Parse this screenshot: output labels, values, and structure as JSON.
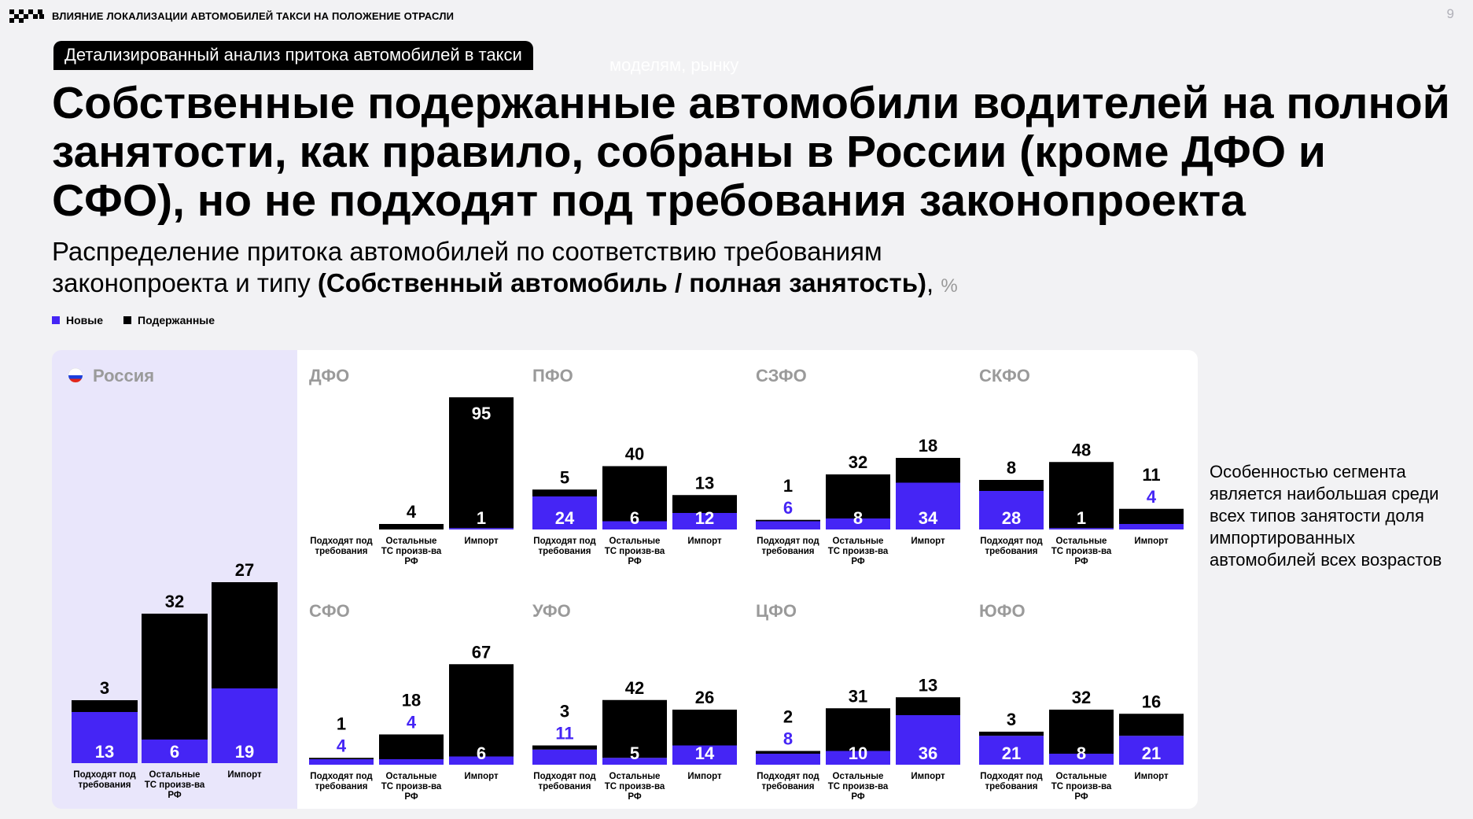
{
  "header": {
    "text": "ВЛИЯНИЕ ЛОКАЛИЗАЦИИ АВТОМОБИЛЕЙ ТАКСИ НА ПОЛОЖЕНИЕ ОТРАСЛИ",
    "page_number": "9"
  },
  "tag": {
    "label": "Детализированный анализ притока автомобилей в такси",
    "ghost_text": "моделям, рынку"
  },
  "title": "Собственные подержанные автомобили водителей на полной занятости, как правило, собраны в России (кроме ДФО и СФО), но не подходят под требования законопроекта",
  "subtitle": {
    "line1": "Распределение притока автомобилей по соответствию требованиям",
    "line2_prefix": "законопроекта и типу ",
    "line2_bold": "(Собственный автомобиль / полная занятость)",
    "line2_suffix": ",",
    "unit": "%"
  },
  "legend": {
    "new": "Новые",
    "used": "Подержанные"
  },
  "colors": {
    "new": "#4525f5",
    "used": "#000000",
    "russia_bg": "#e9e6fb",
    "region_title": "#9a9a9a"
  },
  "side_note": "Особенностью сегмента является наибольшая среди всех типов занятости доля импортированных автомобилей всех возрастов",
  "chart_data": {
    "type": "bar",
    "stacked": true,
    "unit": "%",
    "categories": [
      "Подходят под требования",
      "Остальные ТС произв-ва РФ",
      "Импорт"
    ],
    "series_names": [
      "Новые",
      "Подержанные"
    ],
    "panels": [
      {
        "region": "Россия",
        "new": [
          13,
          6,
          19
        ],
        "used": [
          3,
          32,
          27
        ]
      },
      {
        "region": "ДФО",
        "new": [
          null,
          null,
          1
        ],
        "used": [
          null,
          4,
          95
        ]
      },
      {
        "region": "ПФО",
        "new": [
          24,
          6,
          12
        ],
        "used": [
          5,
          40,
          13
        ]
      },
      {
        "region": "СЗФО",
        "new": [
          6,
          8,
          34
        ],
        "used": [
          1,
          32,
          18
        ]
      },
      {
        "region": "СКФО",
        "new": [
          28,
          1,
          4
        ],
        "used": [
          8,
          48,
          11
        ]
      },
      {
        "region": "СФО",
        "new": [
          4,
          4,
          6
        ],
        "used": [
          1,
          18,
          67
        ]
      },
      {
        "region": "УФО",
        "new": [
          11,
          5,
          14
        ],
        "used": [
          3,
          42,
          26
        ]
      },
      {
        "region": "ЦФО",
        "new": [
          8,
          10,
          36
        ],
        "used": [
          2,
          31,
          13
        ]
      },
      {
        "region": "ЮФО",
        "new": [
          21,
          8,
          21
        ],
        "used": [
          3,
          32,
          16
        ]
      }
    ]
  }
}
